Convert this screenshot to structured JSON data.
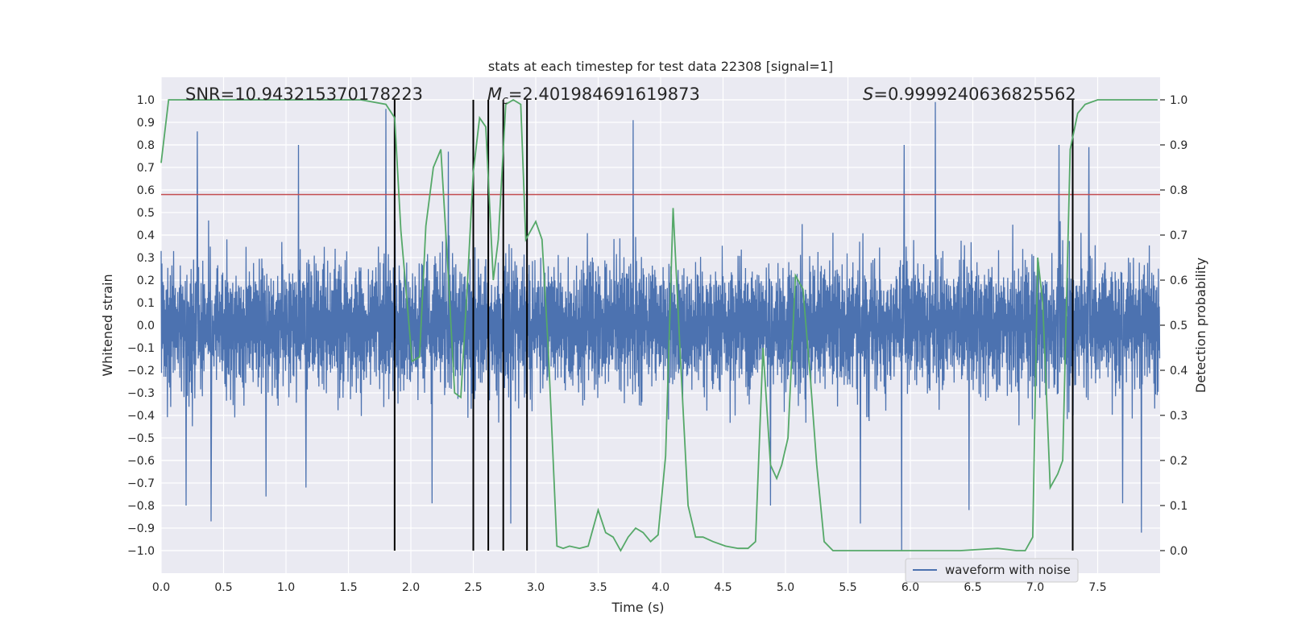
{
  "chart_data": {
    "type": "line",
    "title": "stats at each timestep for test data 22308 [signal=1]",
    "xlabel": "Time (s)",
    "ylabel": "Whitened strain",
    "y2label": "Detection probability",
    "xlim": [
      0.0,
      8.0
    ],
    "ylim": [
      -1.1,
      1.1
    ],
    "y2lim": [
      -0.05,
      1.05
    ],
    "xticks": [
      0.0,
      0.5,
      1.0,
      1.5,
      2.0,
      2.5,
      3.0,
      3.5,
      4.0,
      4.5,
      5.0,
      5.5,
      6.0,
      6.5,
      7.0,
      7.5
    ],
    "xtick_labels": [
      "0.0",
      "0.5",
      "1.0",
      "1.5",
      "2.0",
      "2.5",
      "3.0",
      "3.5",
      "4.0",
      "4.5",
      "5.0",
      "5.5",
      "6.0",
      "6.5",
      "7.0",
      "7.5"
    ],
    "yticks": [
      1.0,
      0.9,
      0.8,
      0.7,
      0.6,
      0.5,
      0.4,
      0.3,
      0.2,
      0.1,
      0.0,
      -0.1,
      -0.2,
      -0.3,
      -0.4,
      -0.5,
      -0.6,
      -0.7,
      -0.8,
      -0.9,
      -1.0
    ],
    "ytick_labels": [
      "1.0",
      "0.9",
      "0.8",
      "0.7",
      "0.6",
      "0.5",
      "0.4",
      "0.3",
      "0.2",
      "0.1",
      "0.0",
      "−0.1",
      "−0.2",
      "−0.3",
      "−0.4",
      "−0.5",
      "−0.6",
      "−0.7",
      "−0.8",
      "−0.9",
      "−1.0"
    ],
    "y2ticks": [
      1.0,
      0.9,
      0.8,
      0.7,
      0.6,
      0.5,
      0.4,
      0.3,
      0.2,
      0.1,
      0.0
    ],
    "y2tick_labels": [
      "1.0",
      "0.9",
      "0.8",
      "0.7",
      "0.6",
      "0.5",
      "0.4",
      "0.3",
      "0.2",
      "0.1",
      "0.0"
    ],
    "annotations": {
      "snr": "SNR=10.943215370178223",
      "mc_symbol": "M",
      "mc_sub": "c",
      "mc_value": "=2.401984691619873",
      "s_symbol": "S",
      "s_value": "=0.9999240636825562"
    },
    "threshold": {
      "name": "threshold",
      "value": 0.79,
      "color": "#c44e52"
    },
    "vlines": [
      1.87,
      2.5,
      2.62,
      2.74,
      2.93,
      7.3
    ],
    "waveform": {
      "name": "waveform with noise",
      "color": "#4c72b0",
      "samples": 2400,
      "typical_amplitude": 0.4,
      "peaks": [
        {
          "t": 0.29,
          "v": 0.86
        },
        {
          "t": 1.8,
          "v": 0.96
        },
        {
          "t": 3.78,
          "v": 0.91
        },
        {
          "t": 6.2,
          "v": 0.99
        },
        {
          "t": 7.19,
          "v": 0.8
        },
        {
          "t": 7.43,
          "v": 0.79
        },
        {
          "t": 0.4,
          "v": -0.87
        },
        {
          "t": 5.93,
          "v": -1.0
        },
        {
          "t": 7.85,
          "v": -0.92
        },
        {
          "t": 2.8,
          "v": -0.88
        },
        {
          "t": 5.6,
          "v": -0.88
        },
        {
          "t": 0.2,
          "v": -0.8
        },
        {
          "t": 0.84,
          "v": -0.76
        },
        {
          "t": 1.16,
          "v": -0.72
        },
        {
          "t": 2.17,
          "v": -0.79
        },
        {
          "t": 6.47,
          "v": -0.82
        },
        {
          "t": 7.7,
          "v": -0.79
        },
        {
          "t": 4.88,
          "v": -0.8
        },
        {
          "t": 5.95,
          "v": 0.8
        },
        {
          "t": 1.1,
          "v": 0.8
        },
        {
          "t": 2.3,
          "v": 0.77
        }
      ]
    },
    "probability": {
      "name": "detection probability",
      "color": "#55a868",
      "x": [
        0.0,
        0.06,
        0.2,
        0.4,
        0.8,
        1.2,
        1.6,
        1.8,
        1.87,
        1.92,
        1.97,
        2.01,
        2.07,
        2.12,
        2.18,
        2.24,
        2.3,
        2.35,
        2.4,
        2.45,
        2.5,
        2.55,
        2.6,
        2.66,
        2.7,
        2.76,
        2.82,
        2.88,
        2.92,
        2.96,
        3.0,
        3.05,
        3.1,
        3.17,
        3.22,
        3.27,
        3.35,
        3.42,
        3.5,
        3.56,
        3.62,
        3.68,
        3.74,
        3.8,
        3.86,
        3.92,
        3.98,
        4.04,
        4.1,
        4.16,
        4.22,
        4.28,
        4.34,
        4.42,
        4.52,
        4.62,
        4.7,
        4.76,
        4.82,
        4.88,
        4.93,
        4.97,
        5.02,
        5.08,
        5.14,
        5.2,
        5.25,
        5.31,
        5.38,
        5.46,
        5.55,
        5.7,
        6.0,
        6.4,
        6.7,
        6.85,
        6.92,
        6.98,
        7.02,
        7.06,
        7.12,
        7.18,
        7.22,
        7.28,
        7.34,
        7.4,
        7.5,
        7.6,
        7.7,
        7.85,
        7.98
      ],
      "y": [
        0.86,
        1.0,
        1.0,
        1.0,
        1.0,
        1.0,
        1.0,
        0.99,
        0.96,
        0.71,
        0.55,
        0.42,
        0.43,
        0.72,
        0.85,
        0.89,
        0.61,
        0.35,
        0.34,
        0.58,
        0.84,
        0.96,
        0.94,
        0.6,
        0.69,
        0.99,
        1.0,
        0.99,
        0.69,
        0.71,
        0.73,
        0.69,
        0.45,
        0.01,
        0.005,
        0.01,
        0.005,
        0.01,
        0.09,
        0.04,
        0.03,
        0.0,
        0.03,
        0.05,
        0.04,
        0.02,
        0.035,
        0.21,
        0.76,
        0.42,
        0.1,
        0.03,
        0.03,
        0.02,
        0.01,
        0.005,
        0.005,
        0.02,
        0.45,
        0.19,
        0.16,
        0.19,
        0.25,
        0.61,
        0.58,
        0.38,
        0.19,
        0.02,
        0.0,
        0.0,
        0.0,
        0.0,
        0.0,
        0.0,
        0.005,
        0.0,
        0.0,
        0.03,
        0.65,
        0.55,
        0.14,
        0.17,
        0.2,
        0.89,
        0.97,
        0.99,
        1.0,
        1.0,
        1.0,
        1.0,
        1.0
      ]
    },
    "legend": {
      "position": "bottom-right",
      "entries": [
        "waveform with noise"
      ]
    }
  }
}
